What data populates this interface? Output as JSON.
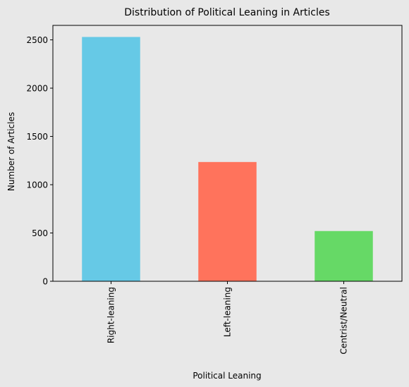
{
  "chart_data": {
    "type": "bar",
    "title": "Distribution of Political Leaning in Articles",
    "xlabel": "Political Leaning",
    "ylabel": "Number of Articles",
    "categories": [
      "Right-leaning",
      "Left-leaning",
      "Centrist/Neutral"
    ],
    "values": [
      2530,
      1235,
      520
    ],
    "colors": [
      "#66c9e6",
      "#ff735c",
      "#66d966"
    ],
    "ylim": [
      0,
      2650
    ],
    "yticks": [
      0,
      500,
      1000,
      1500,
      2000,
      2500
    ],
    "grid": false,
    "legend": "none"
  },
  "colors": {
    "background": "#e8e8e8",
    "plot_area": "#e8e8e8",
    "axis": "#000000"
  }
}
